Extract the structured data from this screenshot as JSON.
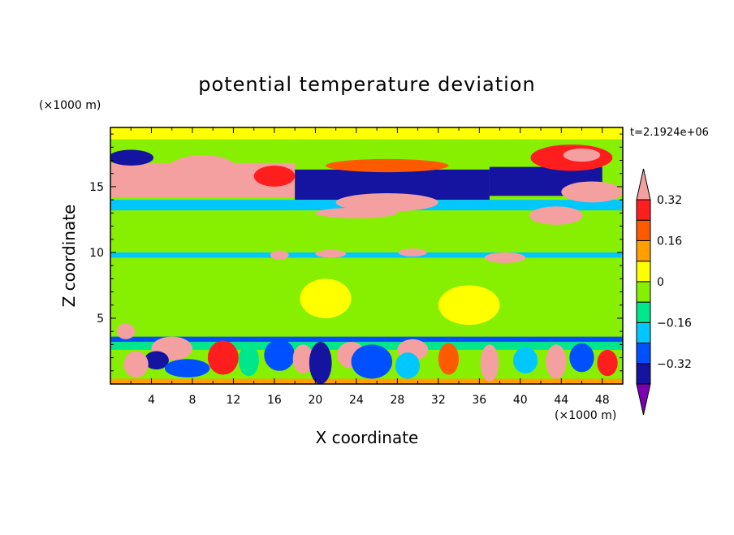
{
  "chart_data": {
    "type": "heatmap",
    "title": "potential temperature deviation",
    "xlabel": "X coordinate",
    "ylabel": "Z coordinate",
    "x_unit": "(×1000 m)",
    "y_unit": "(×1000 m)",
    "time_label": "t=2.1924e+06",
    "xlim": [
      0,
      50
    ],
    "ylim": [
      0,
      19.5
    ],
    "x_ticks": [
      4,
      8,
      12,
      16,
      20,
      24,
      28,
      32,
      36,
      40,
      44,
      48
    ],
    "x_tick_labels": [
      "4",
      "8",
      "12",
      "16",
      "20",
      "24",
      "28",
      "32",
      "36",
      "40",
      "44",
      "48"
    ],
    "y_ticks": [
      5,
      10,
      15
    ],
    "y_tick_labels": [
      "5",
      "10",
      "15"
    ],
    "colorbar": {
      "levels": [
        -0.4,
        -0.32,
        -0.24,
        -0.16,
        -0.08,
        0,
        0.08,
        0.16,
        0.24,
        0.32,
        0.4
      ],
      "labeled_levels": [
        0.32,
        0.16,
        0,
        -0.16,
        -0.32
      ],
      "labels": [
        "0.32",
        "0.16",
        "0",
        "−0.16",
        "−0.32"
      ],
      "colors_bottom_to_top": [
        "#7a00b3",
        "#1414a0",
        "#0050ff",
        "#00c8ff",
        "#00e68c",
        "#87f000",
        "#ffff00",
        "#ffa000",
        "#ff5a00",
        "#ff1e1e",
        "#f5a0a0"
      ],
      "extend": "both"
    },
    "background_color": "#87f000",
    "bands": [
      {
        "z": [
          18.6,
          19.5
        ],
        "x": [
          0,
          50
        ],
        "value": 0.04
      },
      {
        "z": [
          14.2,
          16.8
        ],
        "x": [
          0,
          18
        ],
        "value": 0.4
      },
      {
        "z": [
          14.0,
          16.3
        ],
        "x": [
          18,
          37
        ],
        "value": -0.4
      },
      {
        "z": [
          14.3,
          16.5
        ],
        "x": [
          37,
          48
        ],
        "value": -0.4
      },
      {
        "z": [
          13.2,
          14.0
        ],
        "x": [
          0,
          50
        ],
        "value": -0.2
      },
      {
        "z": [
          12.2,
          13.0
        ],
        "x": [
          0,
          50
        ],
        "value": -0.06
      },
      {
        "z": [
          11.0,
          11.8
        ],
        "x": [
          0,
          50
        ],
        "value": -0.02
      },
      {
        "z": [
          9.6,
          10.0
        ],
        "x": [
          0,
          50
        ],
        "value": -0.24
      },
      {
        "z": [
          9.2,
          9.6
        ],
        "x": [
          0,
          50
        ],
        "value": -0.06
      },
      {
        "z": [
          8.5,
          9.0
        ],
        "x": [
          0,
          50
        ],
        "value": -0.02
      },
      {
        "z": [
          3.2,
          3.6
        ],
        "x": [
          0,
          50
        ],
        "value": -0.32
      },
      {
        "z": [
          2.6,
          3.2
        ],
        "x": [
          0,
          50
        ],
        "value": -0.1
      },
      {
        "z": [
          0,
          0.4
        ],
        "x": [
          0,
          50
        ],
        "value": 0.1
      }
    ],
    "blobs": [
      {
        "x": 9,
        "z": 16.2,
        "rx": 3.5,
        "rz": 1.2,
        "value": 0.32
      },
      {
        "x": 9.5,
        "z": 16.3,
        "rx": 1.2,
        "rz": 0.6,
        "value": 0.4
      },
      {
        "x": 16,
        "z": 15.8,
        "rx": 2.0,
        "rz": 0.8,
        "value": 0.24
      },
      {
        "x": 2,
        "z": 17.2,
        "rx": 2.2,
        "rz": 0.6,
        "value": -0.4
      },
      {
        "x": 27,
        "z": 16.6,
        "rx": 6.0,
        "rz": 0.5,
        "value": 0.2
      },
      {
        "x": 45,
        "z": 17.2,
        "rx": 4.0,
        "rz": 1.0,
        "value": 0.24
      },
      {
        "x": 46,
        "z": 17.4,
        "rx": 1.8,
        "rz": 0.5,
        "value": 0.32
      },
      {
        "x": 47,
        "z": 14.6,
        "rx": 3.0,
        "rz": 0.8,
        "value": 0.4
      },
      {
        "x": 27,
        "z": 13.8,
        "rx": 5.0,
        "rz": 0.7,
        "value": 0.4
      },
      {
        "x": 24,
        "z": 13.0,
        "rx": 4.0,
        "rz": 0.4,
        "value": 0.32
      },
      {
        "x": 43.5,
        "z": 12.8,
        "rx": 2.6,
        "rz": 0.7,
        "value": 0.4
      },
      {
        "x": 16.5,
        "z": 9.8,
        "rx": 0.9,
        "rz": 0.35,
        "value": 0.4
      },
      {
        "x": 21.5,
        "z": 9.9,
        "rx": 1.5,
        "rz": 0.3,
        "value": 0.4
      },
      {
        "x": 29.5,
        "z": 10.0,
        "rx": 1.4,
        "rz": 0.3,
        "value": 0.4
      },
      {
        "x": 38.5,
        "z": 9.6,
        "rx": 2.0,
        "rz": 0.4,
        "value": 0.4
      },
      {
        "x": 1.5,
        "z": 4.0,
        "rx": 0.9,
        "rz": 0.6,
        "value": 0.4
      },
      {
        "x": 6.0,
        "z": 2.7,
        "rx": 2.0,
        "rz": 0.9,
        "value": 0.4
      },
      {
        "x": 4.5,
        "z": 1.8,
        "rx": 1.2,
        "rz": 0.7,
        "value": -0.4
      },
      {
        "x": 7.5,
        "z": 1.2,
        "rx": 2.2,
        "rz": 0.7,
        "value": -0.32
      },
      {
        "x": 2.5,
        "z": 1.5,
        "rx": 1.2,
        "rz": 1.0,
        "value": 0.32
      },
      {
        "x": 11.0,
        "z": 2.0,
        "rx": 1.5,
        "rz": 1.3,
        "value": 0.24
      },
      {
        "x": 13.5,
        "z": 1.8,
        "rx": 1.0,
        "rz": 1.2,
        "value": -0.16
      },
      {
        "x": 16.5,
        "z": 2.2,
        "rx": 1.5,
        "rz": 1.2,
        "value": -0.32
      },
      {
        "x": 18.8,
        "z": 1.9,
        "rx": 1.0,
        "rz": 1.1,
        "value": 0.4
      },
      {
        "x": 20.5,
        "z": 1.6,
        "rx": 1.1,
        "rz": 1.6,
        "value": -0.4
      },
      {
        "x": 23.5,
        "z": 2.2,
        "rx": 1.4,
        "rz": 1.0,
        "value": 0.32
      },
      {
        "x": 25.5,
        "z": 1.7,
        "rx": 2.0,
        "rz": 1.3,
        "value": -0.32
      },
      {
        "x": 29.5,
        "z": 2.6,
        "rx": 1.5,
        "rz": 0.8,
        "value": 0.4
      },
      {
        "x": 29.0,
        "z": 1.4,
        "rx": 1.2,
        "rz": 1.0,
        "value": -0.24
      },
      {
        "x": 33.0,
        "z": 1.9,
        "rx": 1.0,
        "rz": 1.2,
        "value": 0.16
      },
      {
        "x": 37.0,
        "z": 1.6,
        "rx": 0.9,
        "rz": 1.4,
        "value": 0.32
      },
      {
        "x": 40.5,
        "z": 1.8,
        "rx": 1.2,
        "rz": 1.0,
        "value": -0.24
      },
      {
        "x": 43.5,
        "z": 1.7,
        "rx": 1.0,
        "rz": 1.3,
        "value": 0.32
      },
      {
        "x": 46.0,
        "z": 2.0,
        "rx": 1.2,
        "rz": 1.1,
        "value": -0.32
      },
      {
        "x": 48.5,
        "z": 1.6,
        "rx": 1.0,
        "rz": 1.0,
        "value": 0.24
      },
      {
        "x": 21.0,
        "z": 6.5,
        "rx": 2.5,
        "rz": 1.5,
        "value": 0.02
      },
      {
        "x": 35.0,
        "z": 6.0,
        "rx": 3.0,
        "rz": 1.5,
        "value": 0.02
      },
      {
        "x": 10.0,
        "z": 5.5,
        "rx": 3.0,
        "rz": 1.0,
        "value": -0.02
      }
    ]
  }
}
